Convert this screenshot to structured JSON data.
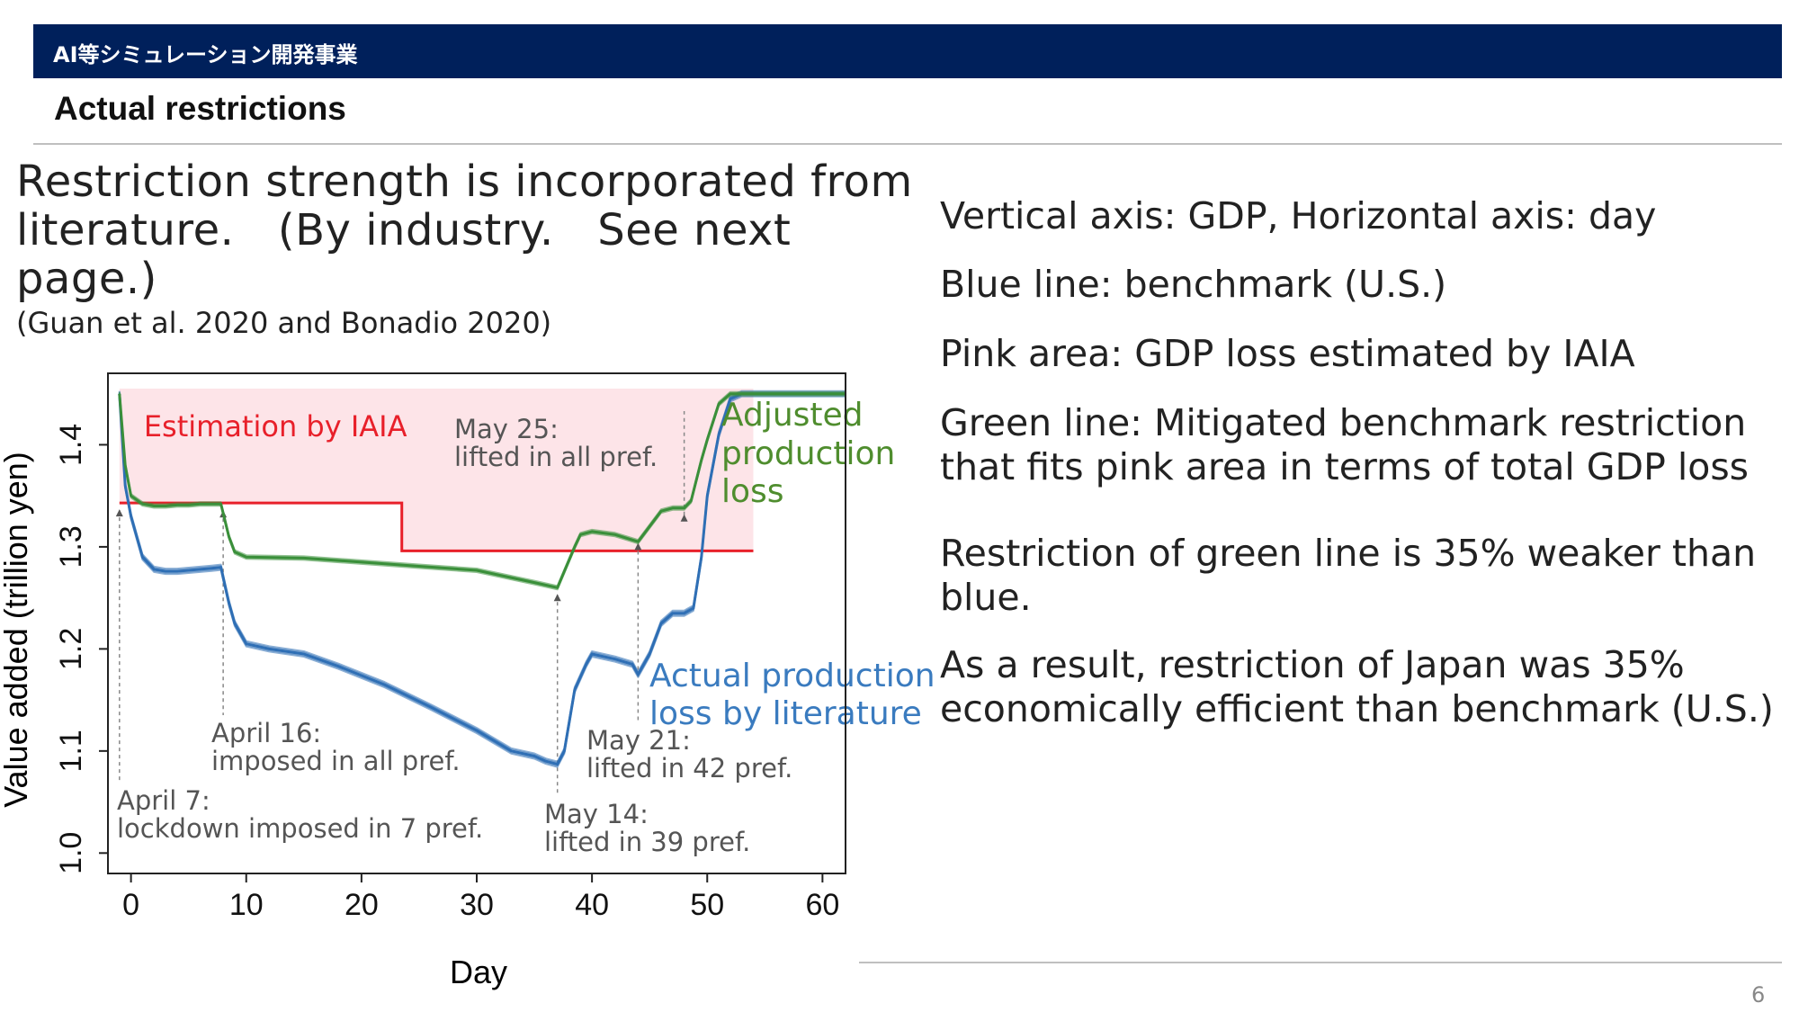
{
  "header": {
    "program": "AI等シミュレーション開発事業"
  },
  "slide": {
    "title": "Actual restrictions",
    "page_number": "6"
  },
  "intro": {
    "line1": "Restriction strength is incorporated from",
    "line2": "literature.　(By industry.　See next page.)",
    "reference": "(Guan et al. 2020 and Bonadio 2020)"
  },
  "notes": {
    "axes": "Vertical axis: GDP, Horizontal axis: day",
    "blue": "Blue line: benchmark (U.S.)",
    "pink": "Pink area: GDP loss estimated by IAIA",
    "green": "Green line: Mitigated benchmark restriction that fits pink area in terms of total GDP loss",
    "weaker": "Restriction of green line is 35% weaker than blue.",
    "result": "As a result, restriction of Japan was 35% economically efficient than benchmark (U.S.)"
  },
  "chart_data": {
    "type": "line",
    "xlabel": "Day",
    "ylabel": "Value added (trillion yen)",
    "xlim": [
      -2,
      62
    ],
    "ylim": [
      0.98,
      1.47
    ],
    "xticks": [
      "0",
      "10",
      "20",
      "30",
      "40",
      "50",
      "60"
    ],
    "xtick_values": [
      0,
      10,
      20,
      30,
      40,
      50,
      60
    ],
    "yticks": [
      "1.0",
      "1.1",
      "1.2",
      "1.3",
      "1.4"
    ],
    "ytick_values": [
      1.0,
      1.1,
      1.2,
      1.3,
      1.4
    ],
    "pink_area": {
      "label": "Estimation by IAIA",
      "x": [
        -1,
        54
      ],
      "top": 1.455,
      "floor": [
        [
          -1,
          1.343
        ],
        [
          23.5,
          1.343
        ],
        [
          23.5,
          1.296
        ],
        [
          54,
          1.296
        ]
      ]
    },
    "series": [
      {
        "name": "Actual production loss by literature",
        "color": "#2f6fb5",
        "x": [
          -1,
          -0.5,
          0,
          0.5,
          1,
          2,
          3,
          4,
          5,
          6,
          7,
          7.8,
          8,
          8.5,
          9,
          10,
          12,
          15,
          18,
          22,
          26,
          30,
          33,
          35,
          36,
          37,
          37.6,
          38.5,
          39.5,
          40,
          42,
          43.5,
          44,
          45,
          46,
          47,
          48,
          48.8,
          49.5,
          50,
          51,
          52,
          53,
          55,
          60,
          62
        ],
        "y": [
          1.45,
          1.36,
          1.33,
          1.31,
          1.29,
          1.278,
          1.276,
          1.276,
          1.277,
          1.278,
          1.279,
          1.28,
          1.27,
          1.245,
          1.225,
          1.205,
          1.2,
          1.195,
          1.183,
          1.165,
          1.143,
          1.12,
          1.1,
          1.095,
          1.09,
          1.087,
          1.1,
          1.16,
          1.185,
          1.195,
          1.19,
          1.185,
          1.175,
          1.195,
          1.225,
          1.235,
          1.235,
          1.24,
          1.29,
          1.35,
          1.41,
          1.445,
          1.45,
          1.45,
          1.45,
          1.45
        ]
      },
      {
        "name": "Adjusted production loss",
        "color": "#3a8f3a",
        "x": [
          -1,
          -0.5,
          0,
          1,
          2,
          3,
          4,
          5,
          6,
          7,
          7.8,
          8.5,
          9,
          10,
          15,
          20,
          25,
          30,
          35,
          37,
          38.5,
          39,
          40,
          42,
          44,
          45,
          46,
          47,
          48,
          48.6,
          49.5,
          50,
          51,
          52,
          53,
          55,
          60,
          62
        ],
        "y": [
          1.45,
          1.38,
          1.35,
          1.342,
          1.34,
          1.34,
          1.341,
          1.341,
          1.342,
          1.342,
          1.342,
          1.31,
          1.295,
          1.29,
          1.289,
          1.285,
          1.281,
          1.277,
          1.265,
          1.26,
          1.3,
          1.312,
          1.315,
          1.312,
          1.305,
          1.32,
          1.335,
          1.338,
          1.338,
          1.345,
          1.385,
          1.405,
          1.44,
          1.45,
          1.45,
          1.45,
          1.45,
          1.45
        ]
      }
    ],
    "series_labels": {
      "adjusted_1": "Adjusted",
      "adjusted_2": "production",
      "adjusted_3": "loss",
      "actual_1": "Actual production",
      "actual_2": "loss by literature"
    },
    "annotations": [
      {
        "x": -1,
        "lines": [
          "April 7:",
          "lockdown imposed in 7 pref."
        ]
      },
      {
        "x": 8,
        "lines": [
          "April 16:",
          "imposed in all pref."
        ]
      },
      {
        "x": 37,
        "lines": [
          "May 14:",
          "lifted in 39 pref."
        ]
      },
      {
        "x": 44,
        "lines": [
          "May 21:",
          "lifted in 42 pref."
        ]
      },
      {
        "x": 48,
        "lines": [
          "May 25:",
          "lifted in all pref."
        ]
      }
    ],
    "grid": false
  }
}
